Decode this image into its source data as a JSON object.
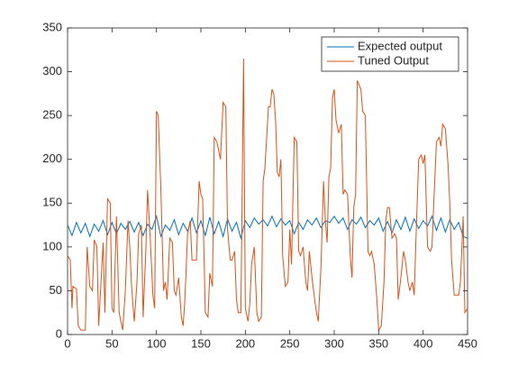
{
  "chart_data": {
    "type": "line",
    "xlim": [
      0,
      450
    ],
    "xticks": [
      0,
      50,
      100,
      150,
      200,
      250,
      300,
      350,
      400,
      450
    ],
    "ylim": [
      0,
      350
    ],
    "yticks": [
      0,
      50,
      100,
      150,
      200,
      250,
      300,
      350
    ],
    "legend": "northeast",
    "grid": false,
    "series": [
      {
        "name": "Expected output",
        "color": "#0072bd",
        "x": [
          0,
          5,
          10,
          15,
          20,
          25,
          30,
          35,
          40,
          45,
          50,
          55,
          60,
          65,
          70,
          75,
          80,
          85,
          90,
          95,
          100,
          105,
          110,
          115,
          120,
          125,
          130,
          135,
          140,
          145,
          150,
          155,
          160,
          165,
          170,
          175,
          180,
          185,
          190,
          195,
          200,
          205,
          210,
          215,
          220,
          225,
          230,
          235,
          240,
          245,
          250,
          255,
          260,
          265,
          270,
          275,
          280,
          285,
          290,
          295,
          300,
          305,
          310,
          315,
          320,
          325,
          330,
          335,
          340,
          345,
          350,
          355,
          360,
          365,
          370,
          375,
          380,
          385,
          390,
          395,
          400,
          405,
          410,
          415,
          420,
          425,
          430,
          435,
          440,
          445,
          450
        ],
        "values": [
          125,
          113,
          128,
          116,
          127,
          112,
          126,
          118,
          130,
          114,
          128,
          115,
          127,
          120,
          129,
          117,
          128,
          113,
          126,
          120,
          135,
          112,
          125,
          119,
          131,
          114,
          127,
          118,
          133,
          116,
          130,
          113,
          134,
          115,
          129,
          112,
          132,
          118,
          128,
          110,
          130,
          122,
          133,
          126,
          131,
          124,
          135,
          123,
          132,
          125,
          130,
          115,
          128,
          120,
          131,
          125,
          133,
          122,
          130,
          128,
          135,
          127,
          133,
          120,
          131,
          126,
          134,
          122,
          130,
          125,
          133,
          118,
          129,
          116,
          131,
          120,
          134,
          118,
          132,
          121,
          130,
          124,
          135,
          119,
          133,
          117,
          131,
          120,
          128,
          112,
          110
        ]
      },
      {
        "name": "Tuned Output",
        "color": "#d95319",
        "x": [
          0,
          3,
          5,
          6,
          10,
          12,
          15,
          20,
          22,
          25,
          28,
          30,
          33,
          35,
          40,
          42,
          45,
          48,
          50,
          52,
          55,
          58,
          62,
          65,
          68,
          70,
          72,
          75,
          78,
          80,
          83,
          85,
          88,
          90,
          93,
          96,
          98,
          100,
          102,
          105,
          108,
          110,
          112,
          115,
          118,
          120,
          122,
          125,
          128,
          130,
          132,
          135,
          138,
          140,
          145,
          148,
          150,
          152,
          155,
          158,
          160,
          163,
          165,
          168,
          170,
          172,
          175,
          178,
          180,
          183,
          185,
          188,
          190,
          192,
          195,
          198,
          200,
          203,
          205,
          207,
          210,
          213,
          215,
          218,
          220,
          222,
          224,
          226,
          228,
          230,
          232,
          234,
          236,
          238,
          240,
          242,
          245,
          248,
          250,
          252,
          255,
          258,
          260,
          262,
          265,
          268,
          270,
          272,
          275,
          278,
          280,
          282,
          285,
          288,
          290,
          292,
          294,
          296,
          298,
          300,
          302,
          305,
          308,
          310,
          312,
          315,
          318,
          320,
          322,
          324,
          326,
          328,
          330,
          332,
          335,
          338,
          340,
          342,
          345,
          348,
          350,
          353,
          356,
          358,
          360,
          362,
          365,
          368,
          370,
          372,
          375,
          378,
          380,
          383,
          385,
          388,
          390,
          392,
          395,
          398,
          400,
          402,
          405,
          408,
          410,
          412,
          415,
          418,
          420,
          422,
          425,
          428,
          430,
          432,
          435,
          438,
          440,
          442,
          445,
          447,
          450
        ],
        "values": [
          90,
          85,
          30,
          55,
          52,
          10,
          5,
          5,
          100,
          55,
          50,
          108,
          100,
          10,
          105,
          25,
          155,
          150,
          30,
          25,
          135,
          25,
          5,
          50,
          130,
          100,
          55,
          15,
          58,
          115,
          125,
          20,
          95,
          165,
          110,
          45,
          30,
          255,
          250,
          165,
          50,
          60,
          40,
          110,
          105,
          50,
          45,
          65,
          20,
          10,
          40,
          115,
          130,
          85,
          85,
          175,
          160,
          155,
          25,
          20,
          70,
          55,
          225,
          220,
          210,
          200,
          265,
          260,
          120,
          85,
          85,
          95,
          40,
          25,
          25,
          315,
          30,
          15,
          35,
          80,
          100,
          25,
          15,
          20,
          175,
          190,
          225,
          260,
          260,
          280,
          275,
          245,
          185,
          180,
          200,
          90,
          55,
          60,
          120,
          80,
          225,
          220,
          95,
          90,
          100,
          60,
          50,
          95,
          65,
          40,
          25,
          15,
          75,
          175,
          130,
          105,
          180,
          190,
          270,
          280,
          245,
          230,
          240,
          160,
          165,
          160,
          90,
          65,
          145,
          160,
          290,
          285,
          280,
          255,
          250,
          95,
          90,
          95,
          80,
          40,
          5,
          10,
          60,
          130,
          145,
          145,
          110,
          115,
          110,
          40,
          65,
          95,
          85,
          60,
          50,
          60,
          45,
          110,
          200,
          205,
          195,
          205,
          100,
          95,
          100,
          150,
          220,
          225,
          215,
          240,
          235,
          195,
          150,
          85,
          45,
          45,
          45,
          60,
          135,
          25,
          30
        ]
      }
    ]
  }
}
